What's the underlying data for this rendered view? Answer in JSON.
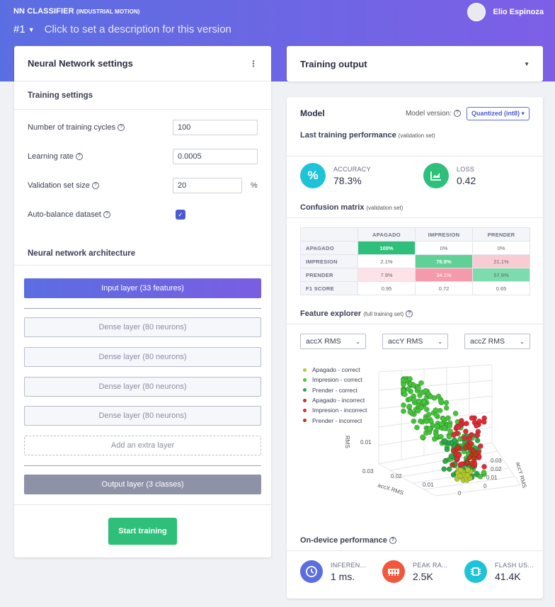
{
  "header": {
    "app_title": "NN CLASSIFIER",
    "app_subtitle": "(INDUSTRIAL MOTION)",
    "user_name": "Elio Espinoza",
    "version_number": "#1",
    "version_description": "Click to set a description for this version"
  },
  "left": {
    "title": "Neural Network settings",
    "training_settings_title": "Training settings",
    "fields": {
      "cycles_label": "Number of training cycles",
      "cycles_value": "100",
      "lr_label": "Learning rate",
      "lr_value": "0.0005",
      "val_label": "Validation set size",
      "val_value": "20",
      "val_unit": "%",
      "autobalance_label": "Auto-balance dataset",
      "autobalance_checked": true
    },
    "architecture_title": "Neural network architecture",
    "layers": {
      "input": "Input layer (33 features)",
      "dense": [
        "Dense layer (80 neurons)",
        "Dense layer (80 neurons)",
        "Dense layer (80 neurons)",
        "Dense layer (80 neurons)"
      ],
      "extra": "Add an extra layer",
      "output": "Output layer (3 classes)"
    },
    "start_button": "Start training"
  },
  "output": {
    "title": "Training output"
  },
  "model": {
    "title": "Model",
    "version_label": "Model version:",
    "version_value": "Quantized (int8)",
    "last_perf_title": "Last training performance",
    "last_perf_sub": "(validation set)",
    "accuracy_label": "ACCURACY",
    "accuracy_value": "78.3%",
    "loss_label": "LOSS",
    "loss_value": "0.42",
    "confusion_title": "Confusion matrix",
    "confusion_sub": "(validation set)",
    "confusion": {
      "columns": [
        "APAGADO",
        "IMPRESION",
        "PRENDER"
      ],
      "rows": [
        {
          "label": "APAGADO",
          "cells": [
            "100%",
            "0%",
            "0%"
          ]
        },
        {
          "label": "IMPRESION",
          "cells": [
            "2.1%",
            "76.9%",
            "21.1%"
          ]
        },
        {
          "label": "PRENDER",
          "cells": [
            "7.9%",
            "34.1%",
            "57.9%"
          ]
        },
        {
          "label": "F1 SCORE",
          "cells": [
            "0.95",
            "0.72",
            "0.65"
          ]
        }
      ]
    },
    "feature_title": "Feature explorer",
    "feature_sub": "(full training set)",
    "axes": [
      "accX RMS",
      "accY RMS",
      "accZ RMS"
    ],
    "legend": [
      {
        "label": "Apagado - correct",
        "color": "#b5c92e"
      },
      {
        "label": "Impresion - correct",
        "color": "#44c43a"
      },
      {
        "label": "Prender - correct",
        "color": "#2aa84a"
      },
      {
        "label": "Apagado - incorrect",
        "color": "#c9302c"
      },
      {
        "label": "Impresion - incorrect",
        "color": "#e02a35"
      },
      {
        "label": "Prender - incorrect",
        "color": "#b83c1a"
      }
    ],
    "plot_ticks": {
      "z_label": "RMS",
      "z_tick": "0.01",
      "y_label": "accY RMS",
      "y_ticks": [
        "0.03",
        "0.02",
        "0.01",
        "0"
      ],
      "x_label": "accX RMS",
      "x_ticks": [
        "0.03",
        "0.02",
        "0.01",
        "0"
      ]
    },
    "ondevice_title": "On-device performance",
    "ondevice": [
      {
        "label": "INFEREN...",
        "value": "1 ms.",
        "color": "#5b6ee1",
        "icon": "clock-icon"
      },
      {
        "label": "PEAK RA...",
        "value": "2.5K",
        "color": "#f0573c",
        "icon": "ram-icon"
      },
      {
        "label": "FLASH US...",
        "value": "41.4K",
        "color": "#1fc3d8",
        "icon": "chip-icon"
      }
    ]
  }
}
